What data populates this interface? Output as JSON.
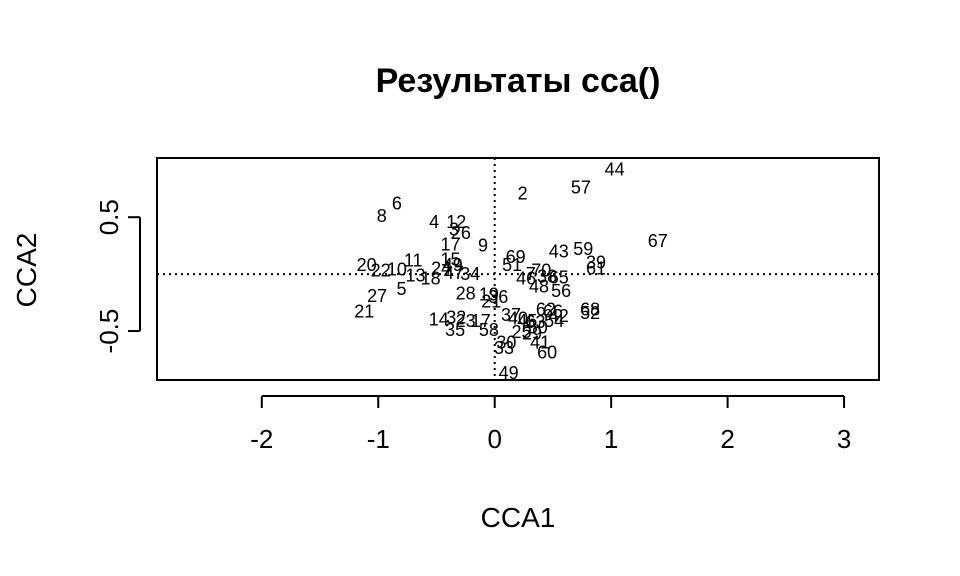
{
  "chart_data": {
    "type": "scatter",
    "title": "Результаты cca()",
    "xlabel": "CCA1",
    "ylabel": "CCA2",
    "xlim": [
      -2.9,
      3.3
    ],
    "ylim": [
      -0.93,
      1.02
    ],
    "xticks": [
      -2,
      -1,
      0,
      1,
      2,
      3
    ],
    "xtick_labels": [
      "-2",
      "-1",
      "0",
      "1",
      "2",
      "3"
    ],
    "yticks": [
      -0.5,
      0.5
    ],
    "ytick_labels": [
      "-0.5",
      "0.5"
    ],
    "reference_lines": {
      "x": 0,
      "y": 0,
      "style": "dotted"
    },
    "marker": "text-labels",
    "points": [
      {
        "label": "44",
        "x": 1.03,
        "y": 0.92
      },
      {
        "label": "57",
        "x": 0.74,
        "y": 0.76
      },
      {
        "label": "2",
        "x": 0.24,
        "y": 0.71
      },
      {
        "label": "6",
        "x": -0.84,
        "y": 0.62
      },
      {
        "label": "8",
        "x": -0.97,
        "y": 0.51
      },
      {
        "label": "4",
        "x": -0.52,
        "y": 0.46
      },
      {
        "label": "12",
        "x": -0.33,
        "y": 0.46
      },
      {
        "label": "26",
        "x": -0.29,
        "y": 0.36
      },
      {
        "label": "3",
        "x": -0.35,
        "y": 0.39
      },
      {
        "label": "17",
        "x": -0.38,
        "y": 0.26
      },
      {
        "label": "9",
        "x": -0.1,
        "y": 0.25
      },
      {
        "label": "67",
        "x": 1.4,
        "y": 0.29
      },
      {
        "label": "43",
        "x": 0.55,
        "y": 0.2
      },
      {
        "label": "59",
        "x": 0.76,
        "y": 0.22
      },
      {
        "label": "69",
        "x": 0.18,
        "y": 0.15
      },
      {
        "label": "39",
        "x": 0.87,
        "y": 0.1
      },
      {
        "label": "61",
        "x": 0.87,
        "y": 0.05
      },
      {
        "label": "51",
        "x": 0.15,
        "y": 0.08
      },
      {
        "label": "70",
        "x": 0.4,
        "y": 0.03
      },
      {
        "label": "7",
        "x": 0.31,
        "y": 0.0
      },
      {
        "label": "38",
        "x": 0.45,
        "y": -0.02
      },
      {
        "label": "65",
        "x": 0.55,
        "y": -0.03
      },
      {
        "label": "46",
        "x": 0.27,
        "y": -0.04
      },
      {
        "label": "48",
        "x": 0.38,
        "y": -0.11
      },
      {
        "label": "56",
        "x": 0.57,
        "y": -0.15
      },
      {
        "label": "20",
        "x": -1.1,
        "y": 0.08
      },
      {
        "label": "22",
        "x": -0.98,
        "y": 0.03
      },
      {
        "label": "10",
        "x": -0.84,
        "y": 0.04
      },
      {
        "label": "11",
        "x": -0.7,
        "y": 0.12
      },
      {
        "label": "15",
        "x": -0.38,
        "y": 0.13
      },
      {
        "label": "49",
        "x": -0.36,
        "y": 0.08
      },
      {
        "label": "24",
        "x": -0.46,
        "y": 0.05
      },
      {
        "label": "13",
        "x": -0.68,
        "y": -0.01
      },
      {
        "label": "18",
        "x": -0.55,
        "y": -0.04
      },
      {
        "label": "47",
        "x": -0.35,
        "y": 0.01
      },
      {
        "label": "34",
        "x": -0.21,
        "y": 0.0
      },
      {
        "label": "27",
        "x": -1.01,
        "y": -0.19
      },
      {
        "label": "5",
        "x": -0.8,
        "y": -0.13
      },
      {
        "label": "28",
        "x": -0.25,
        "y": -0.17
      },
      {
        "label": "19",
        "x": -0.05,
        "y": -0.18
      },
      {
        "label": "36",
        "x": 0.03,
        "y": -0.2
      },
      {
        "label": "21",
        "x": -0.03,
        "y": -0.24
      },
      {
        "label": "21",
        "x": -1.12,
        "y": -0.33
      },
      {
        "label": "62",
        "x": 0.44,
        "y": -0.31
      },
      {
        "label": "66",
        "x": 0.5,
        "y": -0.33
      },
      {
        "label": "68",
        "x": 0.82,
        "y": -0.31
      },
      {
        "label": "52",
        "x": 0.82,
        "y": -0.34
      },
      {
        "label": "42",
        "x": 0.55,
        "y": -0.37
      },
      {
        "label": "54",
        "x": 0.51,
        "y": -0.41
      },
      {
        "label": "37",
        "x": 0.14,
        "y": -0.36
      },
      {
        "label": "40",
        "x": 0.2,
        "y": -0.39
      },
      {
        "label": "45",
        "x": 0.28,
        "y": -0.41
      },
      {
        "label": "63",
        "x": 0.35,
        "y": -0.42
      },
      {
        "label": "14",
        "x": -0.48,
        "y": -0.4
      },
      {
        "label": "32",
        "x": -0.33,
        "y": -0.38
      },
      {
        "label": "23",
        "x": -0.25,
        "y": -0.41
      },
      {
        "label": "17",
        "x": -0.12,
        "y": -0.41
      },
      {
        "label": "35",
        "x": -0.34,
        "y": -0.49
      },
      {
        "label": "58",
        "x": -0.05,
        "y": -0.49
      },
      {
        "label": "25",
        "x": 0.23,
        "y": -0.51
      },
      {
        "label": "50",
        "x": 0.37,
        "y": -0.47
      },
      {
        "label": "29",
        "x": 0.32,
        "y": -0.52
      },
      {
        "label": "30",
        "x": 0.1,
        "y": -0.6
      },
      {
        "label": "41",
        "x": 0.39,
        "y": -0.6
      },
      {
        "label": "33",
        "x": 0.08,
        "y": -0.65
      },
      {
        "label": "60",
        "x": 0.45,
        "y": -0.69
      },
      {
        "label": "49",
        "x": 0.12,
        "y": -0.87
      }
    ]
  }
}
